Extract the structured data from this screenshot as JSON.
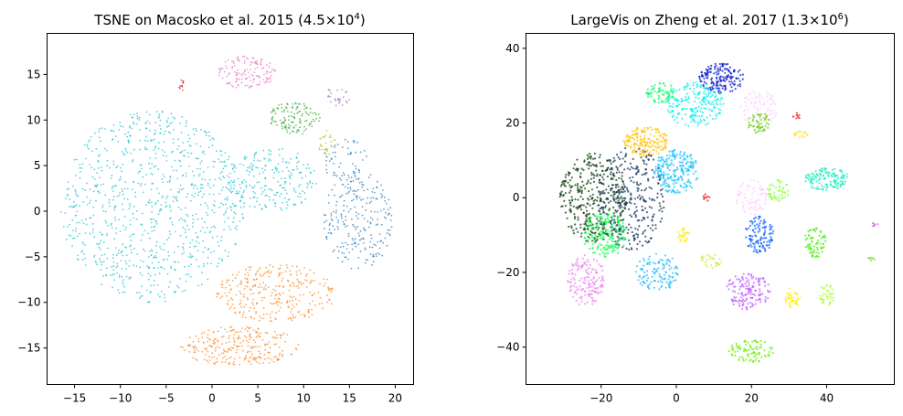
{
  "chart_data": [
    {
      "type": "scatter",
      "title": "TSNE on Macosko et al. 2015 ($4.5\\times10^4$)",
      "title_parts": {
        "main": "TSNE on Macosko et al. 2015 (4.5",
        "times": "×",
        "base": "10",
        "exp": "4",
        "close": ")"
      },
      "xlim": [
        -18,
        22
      ],
      "ylim": [
        -19,
        19.5
      ],
      "xticks": [
        -15,
        -10,
        -5,
        0,
        5,
        10,
        15,
        20
      ],
      "yticks": [
        -15,
        -10,
        -5,
        0,
        5,
        10,
        15
      ],
      "xtick_labels": [
        "−15",
        "−10",
        "−5",
        "0",
        "5",
        "10",
        "15",
        "20"
      ],
      "ytick_labels": [
        "−15",
        "−10",
        "−5",
        "0",
        "5",
        "10",
        "15"
      ],
      "grid": false,
      "clusters": [
        {
          "color": "#17becf",
          "cx": -6.5,
          "cy": 0.5,
          "rx": 10.0,
          "ry": 10.5,
          "n": 900
        },
        {
          "color": "#17becf",
          "cx": 6.5,
          "cy": 3.5,
          "rx": 5.0,
          "ry": 3.5,
          "n": 220
        },
        {
          "color": "#ff7f0e",
          "cx": 3.0,
          "cy": -14.8,
          "rx": 6.5,
          "ry": 2.2,
          "n": 260
        },
        {
          "color": "#ff7f0e",
          "cx": 7.0,
          "cy": -9.0,
          "rx": 6.5,
          "ry": 3.2,
          "n": 300
        },
        {
          "color": "#e377c2",
          "cx": 3.8,
          "cy": 15.2,
          "rx": 3.2,
          "ry": 1.8,
          "n": 140
        },
        {
          "color": "#2ca02c",
          "cx": 9.0,
          "cy": 10.2,
          "rx": 2.8,
          "ry": 1.8,
          "n": 120
        },
        {
          "color": "#1f77b4",
          "cx": 16.0,
          "cy": -1.0,
          "rx": 3.8,
          "ry": 5.5,
          "n": 240
        },
        {
          "color": "#1f77b4",
          "cx": 14.5,
          "cy": 5.5,
          "rx": 2.5,
          "ry": 2.5,
          "n": 60
        },
        {
          "color": "#bcbd22",
          "cx": 12.5,
          "cy": 7.5,
          "rx": 1.0,
          "ry": 1.4,
          "n": 30
        },
        {
          "color": "#9467bd",
          "cx": 13.5,
          "cy": 12.5,
          "rx": 1.6,
          "ry": 1.0,
          "n": 25
        },
        {
          "color": "#d62728",
          "cx": -3.3,
          "cy": 13.8,
          "rx": 0.3,
          "ry": 0.6,
          "n": 12
        }
      ]
    },
    {
      "type": "scatter",
      "title": "LargeVis on Zheng et al. 2017 ($1.3\\times10^6$)",
      "title_parts": {
        "main": "LargeVis on Zheng et al. 2017 (1.3",
        "times": "×",
        "base": "10",
        "exp": "6",
        "close": ")"
      },
      "xlim": [
        -40,
        58
      ],
      "ylim": [
        -50,
        44
      ],
      "xticks": [
        -20,
        0,
        20,
        40
      ],
      "yticks": [
        -40,
        -20,
        0,
        20,
        40
      ],
      "xtick_labels": [
        "−20",
        "0",
        "20",
        "40"
      ],
      "ytick_labels": [
        "−40",
        "−20",
        "0",
        "20",
        "40"
      ],
      "grid": false,
      "clusters": [
        {
          "color": "#003300",
          "cx": -22,
          "cy": 0,
          "rx": 9,
          "ry": 12,
          "n": 360
        },
        {
          "color": "#0a2a55",
          "cx": -12,
          "cy": 0,
          "rx": 9,
          "ry": 14,
          "n": 320
        },
        {
          "color": "#00ff44",
          "cx": -19,
          "cy": -10,
          "rx": 6,
          "ry": 6,
          "n": 180
        },
        {
          "color": "#ee82ee",
          "cx": -24,
          "cy": -22,
          "rx": 5,
          "ry": 7,
          "n": 150
        },
        {
          "color": "#ffc000",
          "cx": -8,
          "cy": 15,
          "rx": 6,
          "ry": 4,
          "n": 160
        },
        {
          "color": "#0011cc",
          "cx": 12,
          "cy": 32,
          "rx": 6,
          "ry": 4,
          "n": 160
        },
        {
          "color": "#00eeee",
          "cx": 5,
          "cy": 25,
          "rx": 8,
          "ry": 6,
          "n": 200
        },
        {
          "color": "#00eebb",
          "cx": 40,
          "cy": 5,
          "rx": 6,
          "ry": 3,
          "n": 120
        },
        {
          "color": "#00bfff",
          "cx": 0,
          "cy": 7,
          "rx": 6,
          "ry": 6,
          "n": 200
        },
        {
          "color": "#00ff66",
          "cx": -4,
          "cy": 28,
          "rx": 4,
          "ry": 3,
          "n": 70
        },
        {
          "color": "#22bbff",
          "cx": -5,
          "cy": -20,
          "rx": 6,
          "ry": 5,
          "n": 120
        },
        {
          "color": "#0055ff",
          "cx": 22,
          "cy": -10,
          "rx": 4,
          "ry": 5,
          "n": 110
        },
        {
          "color": "#bb55ff",
          "cx": 19,
          "cy": -25,
          "rx": 6,
          "ry": 5,
          "n": 140
        },
        {
          "color": "#ffccff",
          "cx": 20,
          "cy": 0,
          "rx": 4,
          "ry": 5,
          "n": 80
        },
        {
          "color": "#ffccff",
          "cx": 22,
          "cy": 24,
          "rx": 5,
          "ry": 5,
          "n": 80
        },
        {
          "color": "#88ff33",
          "cx": 27,
          "cy": 2,
          "rx": 3,
          "ry": 3,
          "n": 50
        },
        {
          "color": "#66ee00",
          "cx": 20,
          "cy": -41,
          "rx": 6,
          "ry": 3,
          "n": 90
        },
        {
          "color": "#44ee00",
          "cx": 37,
          "cy": -12,
          "rx": 3,
          "ry": 4,
          "n": 70
        },
        {
          "color": "#aaff33",
          "cx": 40,
          "cy": -26,
          "rx": 2,
          "ry": 3,
          "n": 40
        },
        {
          "color": "#ffee00",
          "cx": 31,
          "cy": -27,
          "rx": 2,
          "ry": 3,
          "n": 40
        },
        {
          "color": "#66cc00",
          "cx": 22,
          "cy": 20,
          "rx": 3,
          "ry": 3,
          "n": 50
        },
        {
          "color": "#ffee00",
          "cx": 2,
          "cy": -10,
          "rx": 2,
          "ry": 2,
          "n": 30
        },
        {
          "color": "#ccee44",
          "cx": 9,
          "cy": -17,
          "rx": 3,
          "ry": 2,
          "n": 30
        },
        {
          "color": "#ff2222",
          "cx": 32,
          "cy": 22,
          "rx": 1,
          "ry": 1,
          "n": 10
        },
        {
          "color": "#ffdd00",
          "cx": 33,
          "cy": 17,
          "rx": 2,
          "ry": 1,
          "n": 15
        },
        {
          "color": "#ee0000",
          "cx": 8,
          "cy": 0,
          "rx": 1,
          "ry": 1,
          "n": 8
        },
        {
          "color": "#6ad400",
          "cx": 52,
          "cy": -16,
          "rx": 1,
          "ry": 1,
          "n": 6
        },
        {
          "color": "#dd44ff",
          "cx": 53,
          "cy": -7,
          "rx": 1,
          "ry": 1,
          "n": 6
        }
      ]
    }
  ]
}
